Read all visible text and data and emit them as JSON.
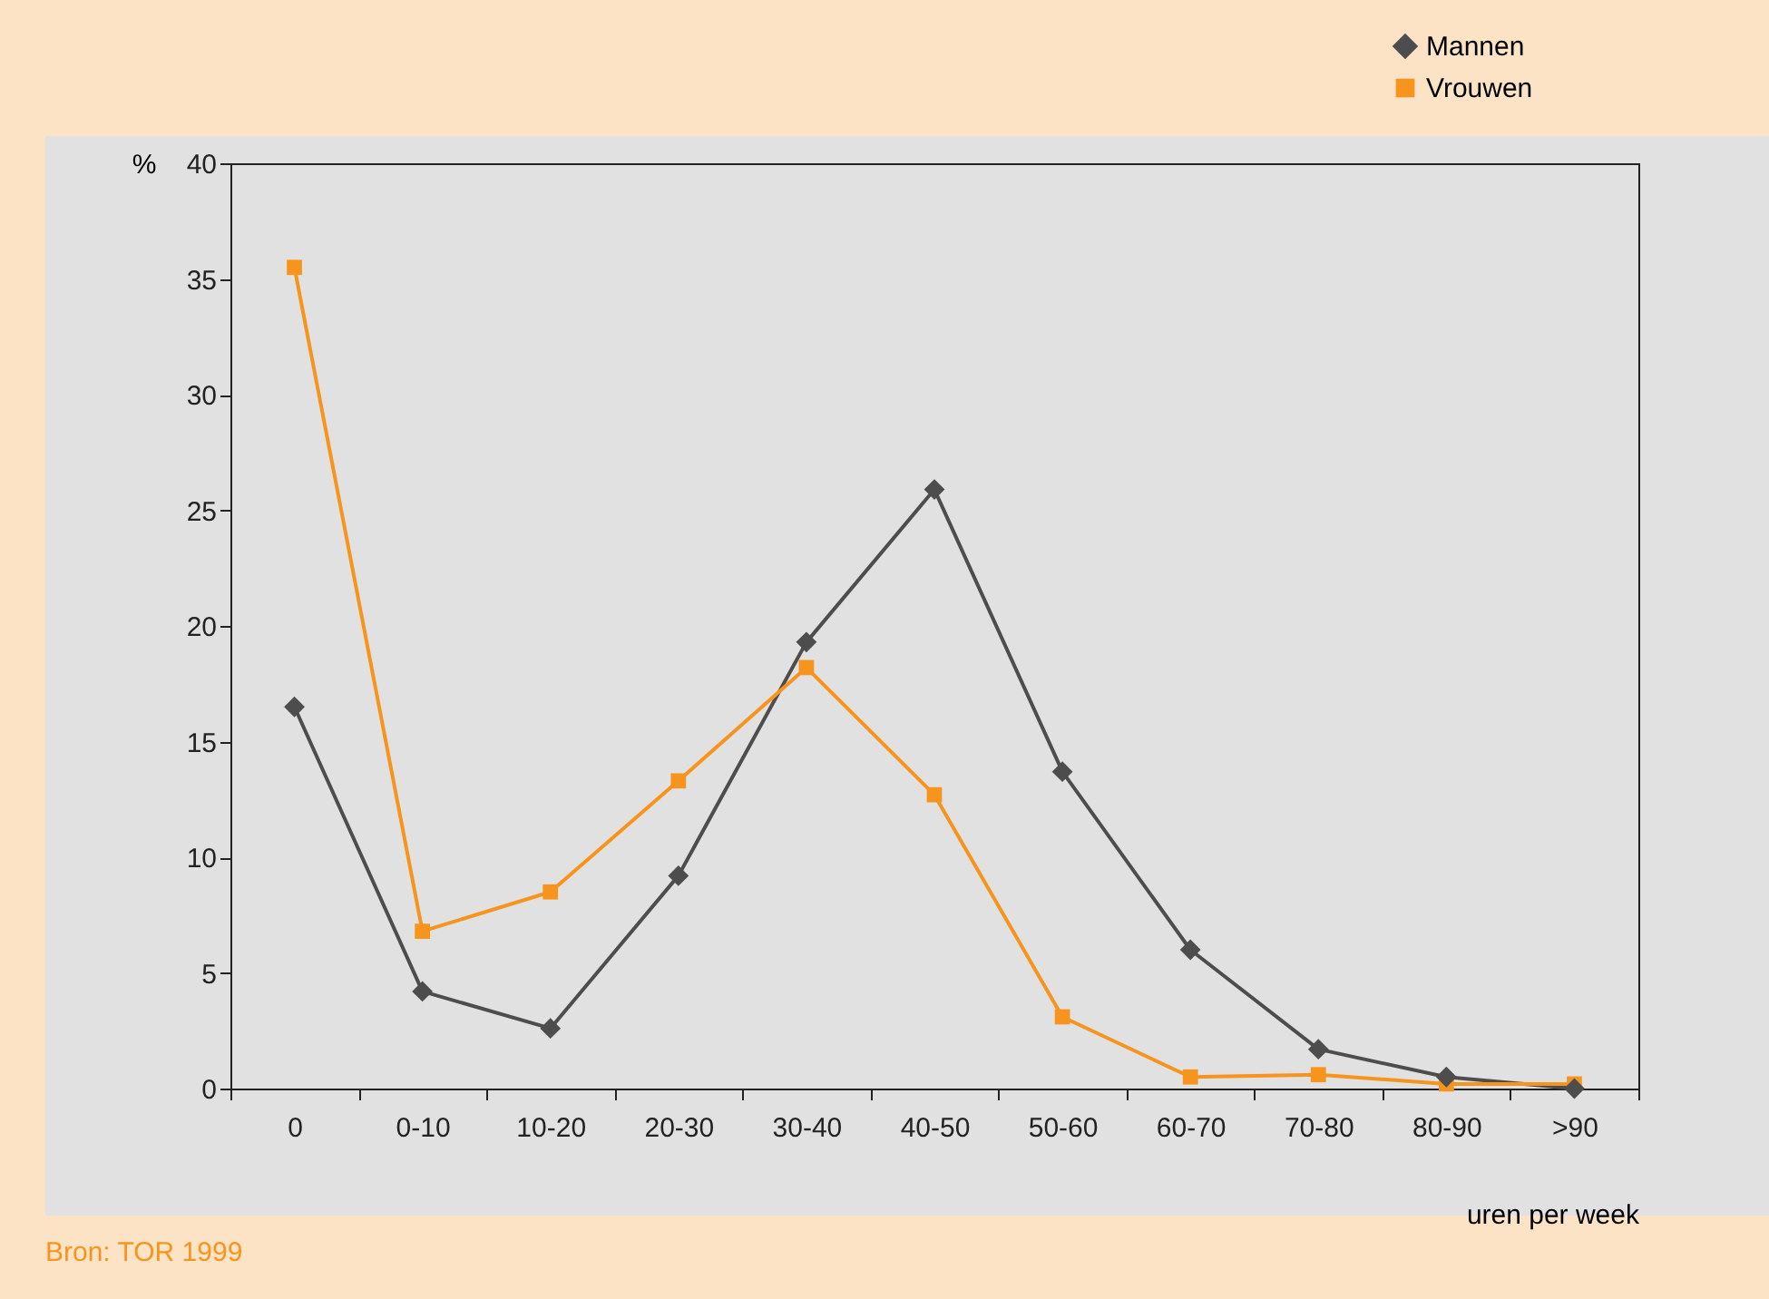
{
  "chart_data": {
    "type": "line",
    "xlabel": "uren per week",
    "ylabel": "%",
    "categories": [
      "0",
      "0-10",
      "10-20",
      "20-30",
      "30-40",
      "40-50",
      "50-60",
      "60-70",
      "70-80",
      "80-90",
      ">90"
    ],
    "series": [
      {
        "name": "Mannen",
        "color": "#4d4d4d",
        "marker": "diamond",
        "values": [
          16.5,
          4.2,
          2.6,
          9.2,
          19.3,
          25.9,
          13.7,
          6.0,
          1.7,
          0.5,
          0.0
        ]
      },
      {
        "name": "Vrouwen",
        "color": "#f7941d",
        "marker": "square",
        "values": [
          35.5,
          6.8,
          8.5,
          13.3,
          18.2,
          12.7,
          3.1,
          0.5,
          0.6,
          0.2,
          0.2
        ]
      }
    ],
    "ylim": [
      0,
      40
    ],
    "yticks": [
      0,
      5,
      10,
      15,
      20,
      25,
      30,
      35,
      40
    ],
    "grid": false,
    "legend": "top right",
    "line_style": "solid",
    "annotations": [
      "Bron: TOR 1999"
    ]
  }
}
